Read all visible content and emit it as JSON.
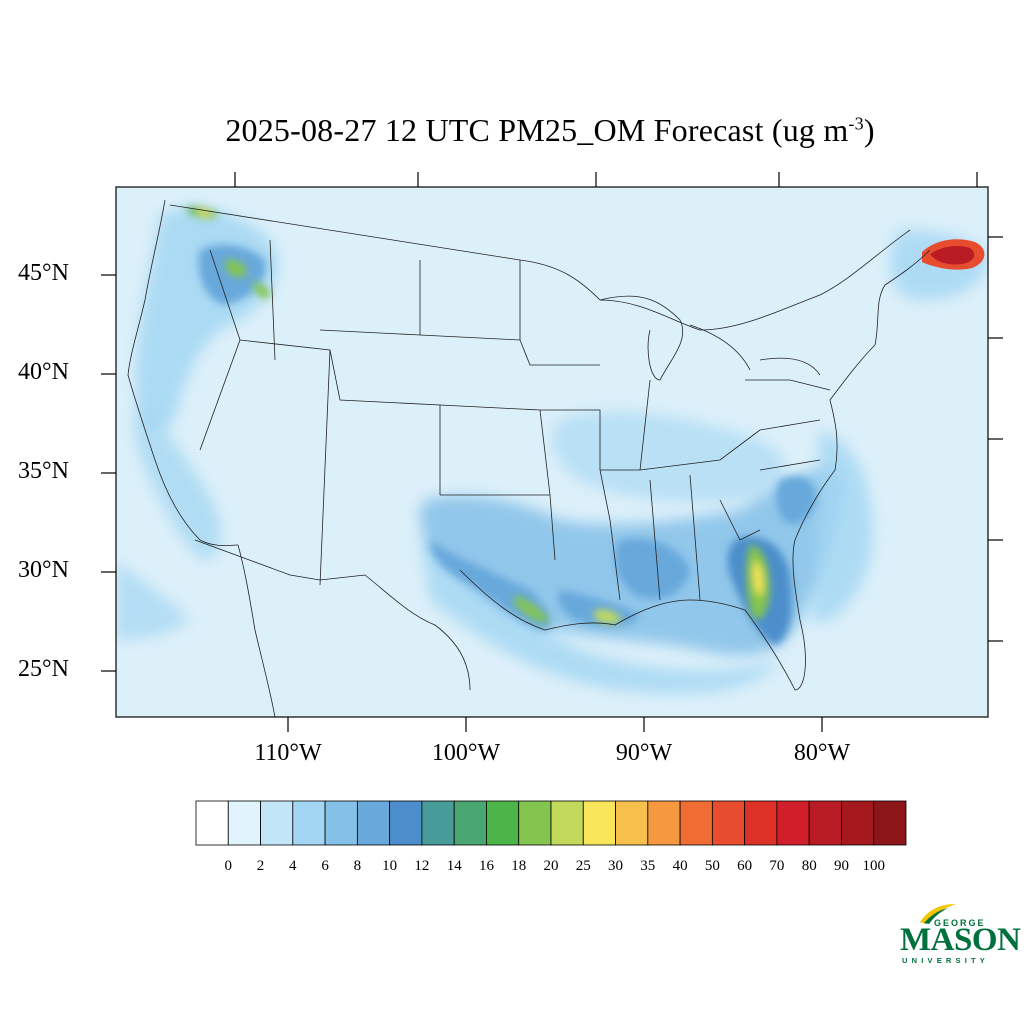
{
  "title": {
    "main": "2025-08-27 12 UTC PM25_OM Forecast (ug m",
    "exponent": "-3",
    "close": ")"
  },
  "map": {
    "ocean_color": "#deeef9",
    "land_base_color": "#dff1fb",
    "border_color": "#222222",
    "lat_labels": [
      "45°N",
      "40°N",
      "35°N",
      "30°N",
      "25°N"
    ],
    "lon_labels": [
      "110°W",
      "100°W",
      "90°W",
      "80°W"
    ]
  },
  "colorbar": {
    "colors": [
      "#ffffff",
      "#e1f3fc",
      "#c2e6f8",
      "#a2d6f2",
      "#84c0e7",
      "#68a8db",
      "#4b8ecb",
      "#479c9a",
      "#4aa671",
      "#4cb54a",
      "#84c550",
      "#c3d95b",
      "#f8e55a",
      "#f7bf4b",
      "#f5983f",
      "#ef6c32",
      "#e84c2e",
      "#dd3128",
      "#d01f2a",
      "#b81b24",
      "#a4181e",
      "#8c151a"
    ],
    "labels": [
      "0",
      "2",
      "4",
      "6",
      "8",
      "10",
      "12",
      "14",
      "16",
      "18",
      "20",
      "25",
      "30",
      "35",
      "40",
      "50",
      "60",
      "70",
      "80",
      "90",
      "100"
    ]
  },
  "logo": {
    "line1": "GEORGE",
    "line2": "MASON",
    "line3": "UNIVERSITY",
    "color": "#00703c",
    "accent": "#f2c500"
  }
}
